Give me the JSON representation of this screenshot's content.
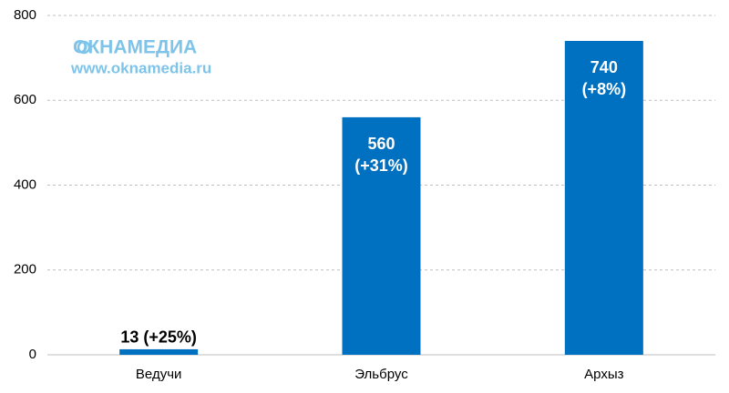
{
  "chart_data": {
    "type": "bar",
    "categories": [
      "Ведучи",
      "Эльбрус",
      "Архыз"
    ],
    "values": [
      13,
      560,
      740
    ],
    "value_labels": [
      "13 (+25%)",
      "560 (+31%)",
      "740 (+8%)"
    ],
    "color": "#0070c0",
    "ylim": [
      0,
      800
    ],
    "yticks": [
      0,
      200,
      400,
      600,
      800
    ],
    "grid": true,
    "watermark": {
      "name": "ОКНАМЕДИА",
      "url": "www.oknamedia.ru"
    }
  }
}
